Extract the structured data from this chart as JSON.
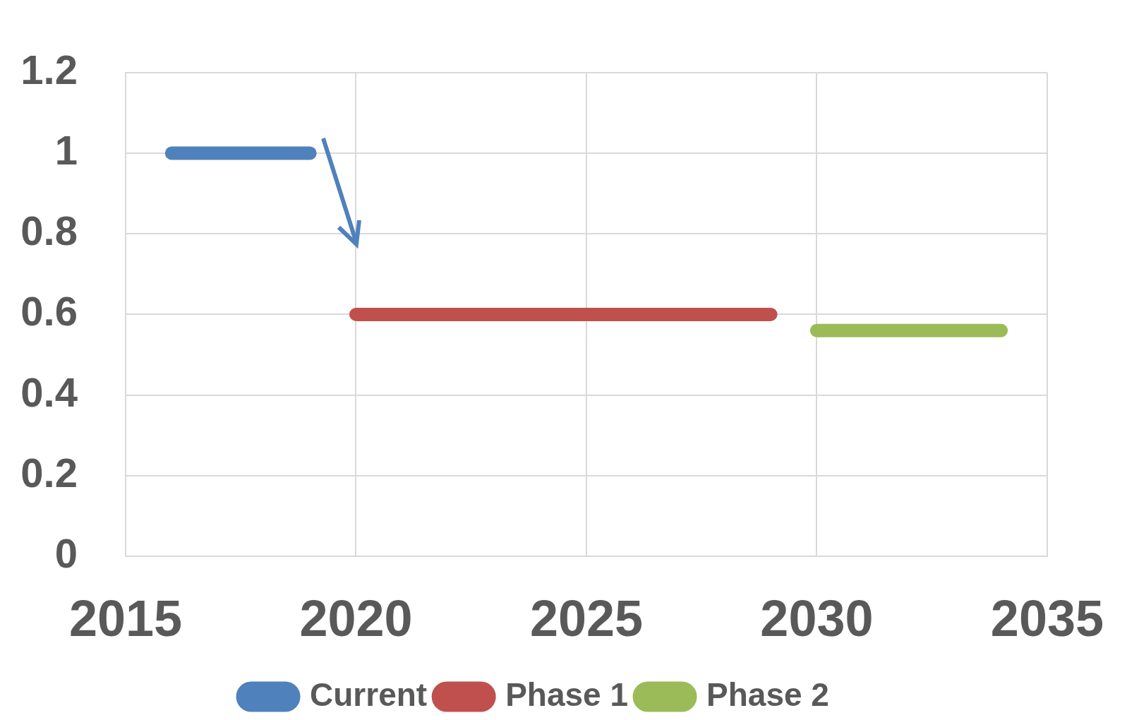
{
  "chart_data": {
    "type": "line",
    "series": [
      {
        "name": "Current",
        "color": "#4f81bd",
        "x": [
          2016,
          2019
        ],
        "values": [
          1,
          1
        ]
      },
      {
        "name": "Phase 1",
        "color": "#c0504d",
        "x": [
          2020,
          2029
        ],
        "values": [
          0.6,
          0.6
        ]
      },
      {
        "name": "Phase 2",
        "color": "#9bbb59",
        "x": [
          2030,
          2034
        ],
        "values": [
          0.56,
          0.56
        ]
      }
    ],
    "xlim": [
      2015,
      2035
    ],
    "xticks": [
      2015,
      2020,
      2025,
      2030,
      2035
    ],
    "ylim": [
      0,
      1.2
    ],
    "yticks": [
      0,
      0.2,
      0.4,
      0.6,
      0.8,
      1,
      1.2
    ],
    "grid": true,
    "legend": "bottom",
    "marker": "none",
    "line_style": "solid"
  }
}
